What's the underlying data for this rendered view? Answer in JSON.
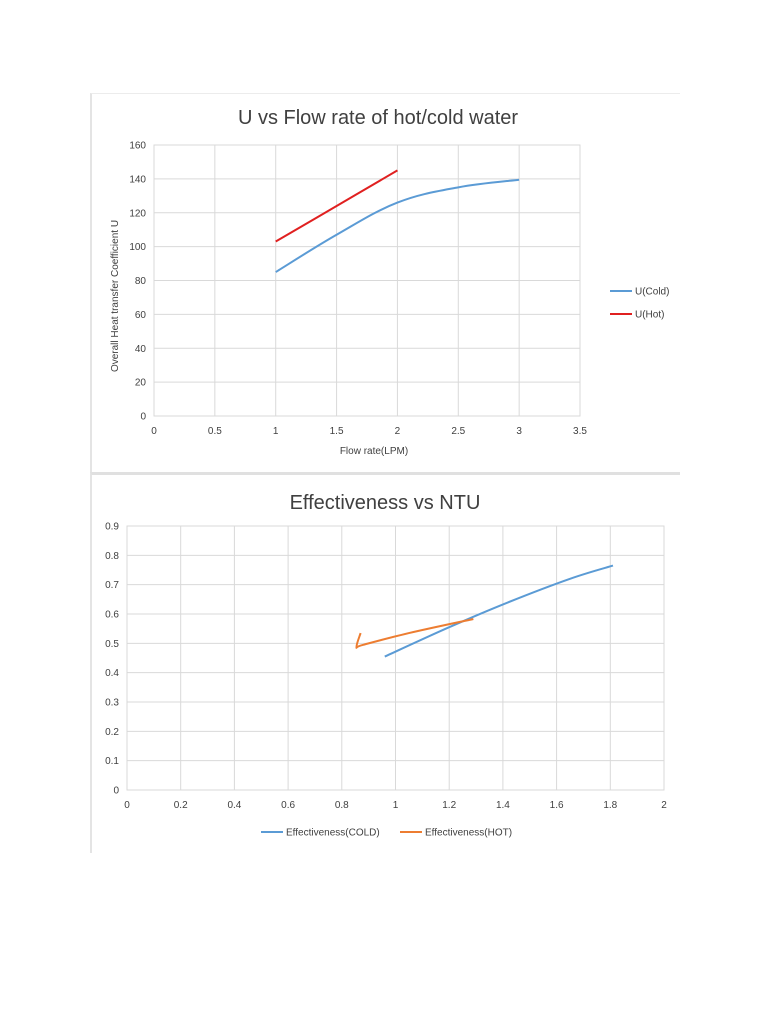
{
  "chart_data": [
    {
      "type": "line",
      "title": "U vs Flow rate of hot/cold water",
      "xlabel": "Flow rate(LPM)",
      "ylabel": "Overall Heat transfer Coefficient  U",
      "xlim": [
        0,
        3.5
      ],
      "ylim": [
        0,
        160
      ],
      "xticks": [
        "0",
        "0.5",
        "1",
        "1.5",
        "2",
        "2.5",
        "3",
        "3.5"
      ],
      "yticks": [
        "0",
        "20",
        "40",
        "60",
        "80",
        "100",
        "120",
        "140",
        "160"
      ],
      "grid": true,
      "legend_position": "right",
      "series": [
        {
          "name": "U(Cold)",
          "color": "#5b9bd5",
          "x": [
            1,
            1.5,
            2,
            2.5,
            3
          ],
          "y": [
            85,
            107,
            126,
            135,
            139.5
          ]
        },
        {
          "name": "U(Hot)",
          "color": "#e02020",
          "x": [
            1,
            1.5,
            2
          ],
          "y": [
            103,
            124,
            145
          ]
        }
      ]
    },
    {
      "type": "line",
      "title": "Effectiveness vs NTU",
      "xlabel": "",
      "ylabel": "",
      "xlim": [
        0,
        2
      ],
      "ylim": [
        0,
        0.9
      ],
      "xticks": [
        "0",
        "0.2",
        "0.4",
        "0.6",
        "0.8",
        "1",
        "1.2",
        "1.4",
        "1.6",
        "1.8",
        "2"
      ],
      "yticks": [
        "0",
        "0.1",
        "0.2",
        "0.3",
        "0.4",
        "0.5",
        "0.6",
        "0.7",
        "0.8",
        "0.9"
      ],
      "grid": true,
      "legend_position": "bottom",
      "series": [
        {
          "name": "Effectiveness(COLD)",
          "color": "#5b9bd5",
          "x": [
            0.96,
            1.2,
            1.42,
            1.65,
            1.81
          ],
          "y": [
            0.455,
            0.555,
            0.64,
            0.72,
            0.765
          ]
        },
        {
          "name": "Effectiveness(HOT)",
          "color": "#ed7d31",
          "x": [
            0.87,
            0.855,
            0.88,
            1.05,
            1.29
          ],
          "y": [
            0.535,
            0.488,
            0.495,
            0.535,
            0.583
          ]
        }
      ]
    }
  ]
}
